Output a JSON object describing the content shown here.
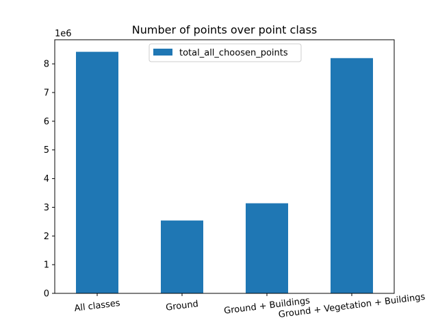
{
  "chart_data": {
    "type": "bar",
    "title": "Number of points over point class",
    "xlabel": "",
    "ylabel": "",
    "y_offset_label": "1e6",
    "categories": [
      "All classes",
      "Ground",
      "Ground + Buildings",
      "Ground + Vegetation + Buildings"
    ],
    "series": [
      {
        "name": "total_all_choosen_points",
        "values": [
          8420000,
          2540000,
          3140000,
          8200000
        ],
        "color": "#1f77b4"
      }
    ],
    "yticks": [
      0,
      1,
      2,
      3,
      4,
      5,
      6,
      7,
      8
    ],
    "ylim": [
      0,
      8840000
    ],
    "legend": "upper center",
    "grid": false
  }
}
